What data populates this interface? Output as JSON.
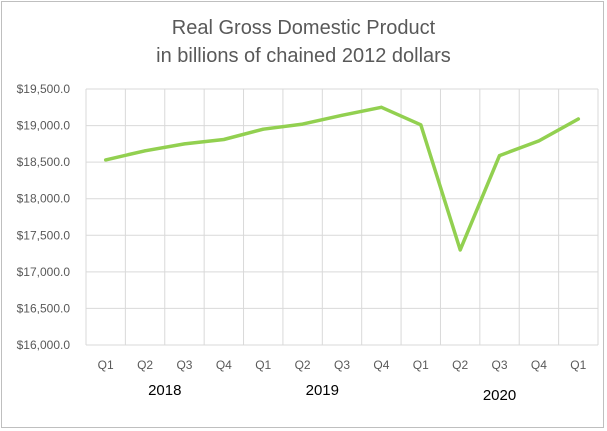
{
  "chart_data": {
    "type": "line",
    "title_lines": [
      "Real Gross Domestic Product",
      "in billions of chained 2012 dollars"
    ],
    "xlabel": "",
    "ylabel": "",
    "categories": [
      "Q1",
      "Q2",
      "Q3",
      "Q4",
      "Q1",
      "Q2",
      "Q3",
      "Q4",
      "Q1",
      "Q2",
      "Q3",
      "Q4",
      "Q1"
    ],
    "year_labels": [
      {
        "label": "2018",
        "start_index": 0,
        "end_index": 3
      },
      {
        "label": "2019",
        "start_index": 4,
        "end_index": 7
      },
      {
        "label": "2020",
        "start_index": 8,
        "end_index": 12
      }
    ],
    "series": [
      {
        "values": [
          18530,
          18655,
          18750,
          18810,
          18950,
          19020,
          19140,
          19250,
          19010,
          17300,
          18590,
          18790,
          19090
        ]
      }
    ],
    "ylim": [
      16000,
      19500
    ],
    "y_ticks": [
      "$16,000.0",
      "$16,500.0",
      "$17,000.0",
      "$17,500.0",
      "$18,000.0",
      "$18,500.0",
      "$19,000.0",
      "$19,500.0"
    ],
    "y_tick_values": [
      16000,
      16500,
      17000,
      17500,
      18000,
      18500,
      19000,
      19500
    ],
    "grid": true,
    "legend": "none",
    "colors": {
      "line": "#92d050",
      "grid": "#d9d9d9",
      "text": "#595959"
    }
  }
}
